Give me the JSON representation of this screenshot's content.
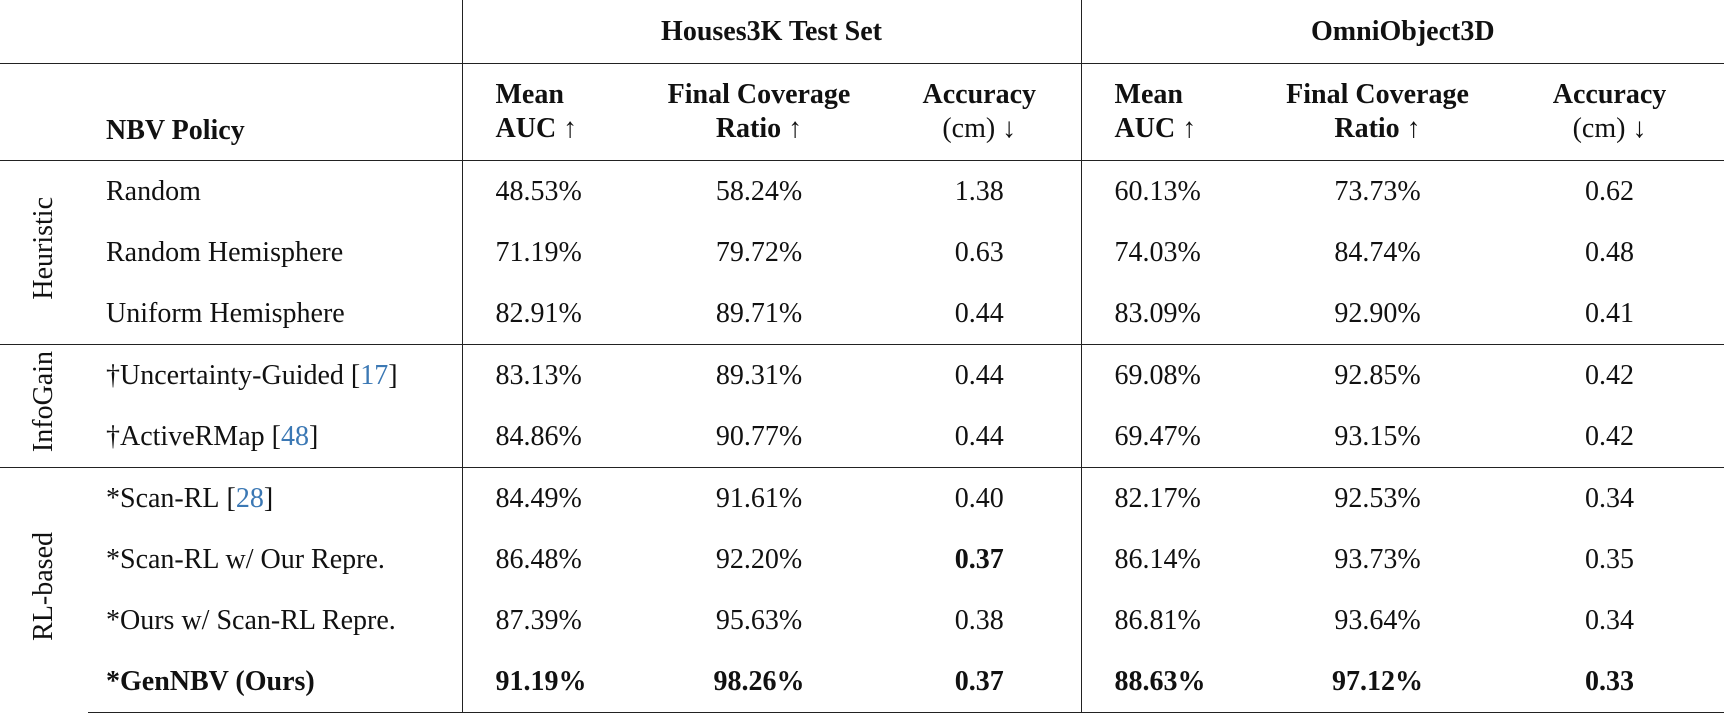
{
  "table": {
    "groups": [
      "Houses3K Test Set",
      "OmniObject3D"
    ],
    "policy_header": "NBV Policy",
    "columns": [
      {
        "line1": "Mean",
        "line2": "AUC ↑"
      },
      {
        "line1": "Final Coverage",
        "line2": "Ratio ↑"
      },
      {
        "line1": "Accuracy",
        "line2": "(cm) ↓"
      },
      {
        "line1": "Mean",
        "line2": "AUC ↑"
      },
      {
        "line1": "Final Coverage",
        "line2": "Ratio ↑"
      },
      {
        "line1": "Accuracy",
        "line2": "(cm) ↓"
      }
    ],
    "sections": [
      {
        "label": "Heuristic",
        "rows": [
          {
            "policy": "Random",
            "cells": [
              "48.53%",
              "58.24%",
              "1.38",
              "60.13%",
              "73.73%",
              "0.62"
            ]
          },
          {
            "policy": "Random Hemisphere",
            "cells": [
              "71.19%",
              "79.72%",
              "0.63",
              "74.03%",
              "84.74%",
              "0.48"
            ]
          },
          {
            "policy": "Uniform Hemisphere",
            "cells": [
              "82.91%",
              "89.71%",
              "0.44",
              "83.09%",
              "92.90%",
              "0.41"
            ]
          }
        ]
      },
      {
        "label": "InfoGain",
        "rows": [
          {
            "policy": "†Uncertainty-Guided",
            "cite": "[17]",
            "cells": [
              "83.13%",
              "89.31%",
              "0.44",
              "69.08%",
              "92.85%",
              "0.42"
            ]
          },
          {
            "policy": "†ActiveRMap",
            "cite": "[48]",
            "cells": [
              "84.86%",
              "90.77%",
              "0.44",
              "69.47%",
              "93.15%",
              "0.42"
            ]
          }
        ]
      },
      {
        "label": "RL-based",
        "rows": [
          {
            "policy": "*Scan-RL",
            "cite": "[28]",
            "cells": [
              "84.49%",
              "91.61%",
              "0.40",
              "82.17%",
              "92.53%",
              "0.34"
            ]
          },
          {
            "policy": "*Scan-RL w/ Our Repre.",
            "cells": [
              "86.48%",
              "92.20%",
              "0.37",
              "86.14%",
              "93.73%",
              "0.35"
            ],
            "bold_cells": [
              2
            ]
          },
          {
            "policy": "*Ours w/ Scan-RL Repre.",
            "cells": [
              "87.39%",
              "95.63%",
              "0.38",
              "86.81%",
              "93.64%",
              "0.34"
            ]
          },
          {
            "policy": "*GenNBV (Ours)",
            "cells": [
              "91.19%",
              "98.26%",
              "0.37",
              "88.63%",
              "97.12%",
              "0.33"
            ],
            "bold": true
          }
        ]
      }
    ]
  }
}
